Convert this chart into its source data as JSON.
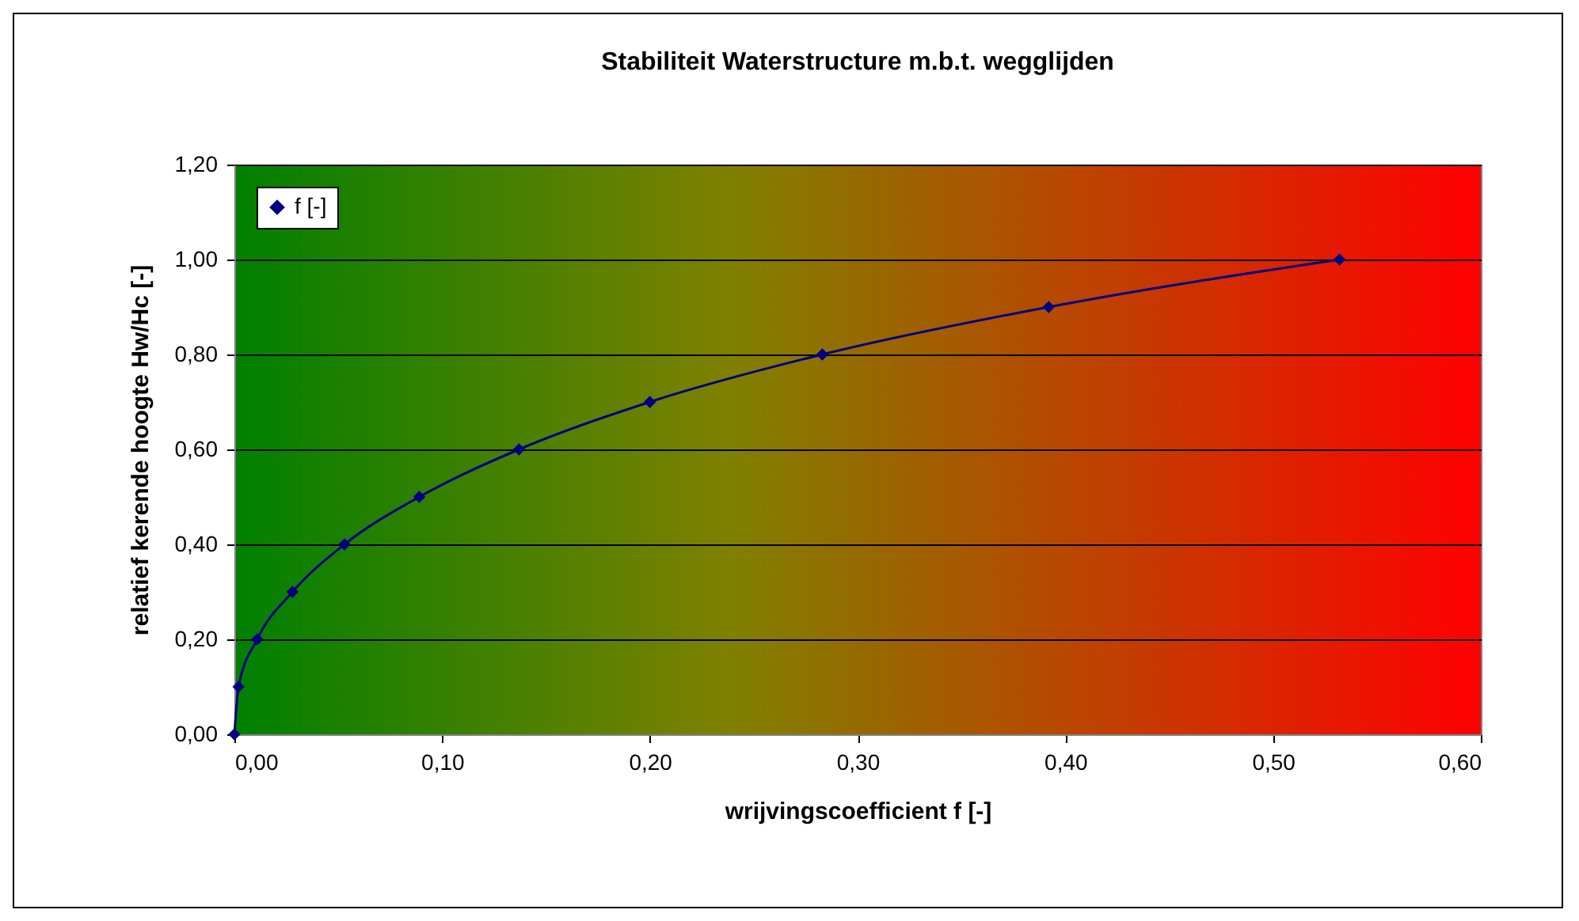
{
  "chart_data": {
    "type": "line",
    "title": "Stabiliteit Waterstructure m.b.t. wegglijden",
    "xlabel": "wrijvingscoefficient f [-]",
    "ylabel": "relatief kerende hoogte Hw/Hc [-]",
    "x": [
      0,
      0.002,
      0.011,
      0.028,
      0.053,
      0.089,
      0.137,
      0.2,
      0.283,
      0.392,
      0.532
    ],
    "series": [
      {
        "name": "f [-]",
        "color": "#000080",
        "values": [
          0,
          0.1,
          0.2,
          0.3,
          0.4,
          0.5,
          0.6,
          0.7,
          0.8,
          0.9,
          1.0
        ]
      }
    ],
    "xlim": [
      0,
      0.6
    ],
    "ylim": [
      0,
      1.2
    ],
    "xticks": [
      {
        "value": 0,
        "label": "0,00"
      },
      {
        "value": 0.1,
        "label": "0,10"
      },
      {
        "value": 0.2,
        "label": "0,20"
      },
      {
        "value": 0.3,
        "label": "0,30"
      },
      {
        "value": 0.4,
        "label": "0,40"
      },
      {
        "value": 0.5,
        "label": "0,50"
      },
      {
        "value": 0.6,
        "label": "0,60"
      }
    ],
    "yticks": [
      {
        "value": 0,
        "label": "0,00"
      },
      {
        "value": 0.2,
        "label": "0,20"
      },
      {
        "value": 0.4,
        "label": "0,40"
      },
      {
        "value": 0.6,
        "label": "0,60"
      },
      {
        "value": 0.8,
        "label": "0,80"
      },
      {
        "value": 1.0,
        "label": "1,00"
      },
      {
        "value": 1.2,
        "label": "1,20"
      }
    ],
    "grid": "y",
    "legend": "top left",
    "marker": "diamond",
    "line_style": "solid"
  }
}
